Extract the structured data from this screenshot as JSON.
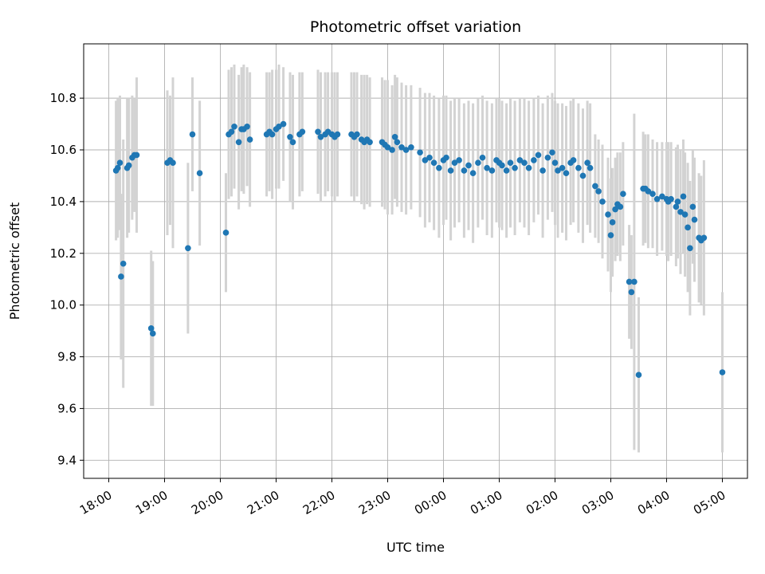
{
  "chart_data": {
    "type": "scatter",
    "title": "Photometric offset variation",
    "xlabel": "UTC time",
    "ylabel": "Photometric offset",
    "grid": true,
    "legend": "none",
    "marker_color": "#1f77b4",
    "errorbar_color": "#d3d3d3",
    "grid_color": "#b0b0b0",
    "background": "#ffffff",
    "x_tick_hours": [
      18,
      19,
      20,
      21,
      22,
      23,
      24,
      25,
      26,
      27,
      28,
      29
    ],
    "x_tick_labels": [
      "18:00",
      "19:00",
      "20:00",
      "21:00",
      "22:00",
      "23:00",
      "00:00",
      "01:00",
      "02:00",
      "03:00",
      "04:00",
      "05:00"
    ],
    "y_ticks": [
      9.4,
      9.6,
      9.8,
      10.0,
      10.2,
      10.4,
      10.6,
      10.8
    ],
    "x_range_hours": [
      17.55,
      29.45
    ],
    "y_range": [
      9.33,
      11.01
    ],
    "points_format": [
      "utc_hour_decimal",
      "offset",
      "error"
    ],
    "points": [
      [
        18.13,
        10.52,
        0.27
      ],
      [
        18.16,
        10.53,
        0.27
      ],
      [
        18.2,
        10.55,
        0.26
      ],
      [
        18.22,
        10.11,
        0.32
      ],
      [
        18.26,
        10.16,
        0.48
      ],
      [
        18.33,
        10.53,
        0.27
      ],
      [
        18.36,
        10.54,
        0.26
      ],
      [
        18.42,
        10.57,
        0.24
      ],
      [
        18.46,
        10.58,
        0.22
      ],
      [
        18.5,
        10.58,
        0.3
      ],
      [
        18.76,
        9.91,
        0.3
      ],
      [
        18.79,
        9.89,
        0.28
      ],
      [
        19.05,
        10.55,
        0.28
      ],
      [
        19.1,
        10.56,
        0.25
      ],
      [
        19.15,
        10.55,
        0.33
      ],
      [
        19.42,
        10.22,
        0.33
      ],
      [
        19.5,
        10.66,
        0.22
      ],
      [
        19.63,
        10.51,
        0.28
      ],
      [
        20.1,
        10.28,
        0.23
      ],
      [
        20.15,
        10.66,
        0.25
      ],
      [
        20.2,
        10.67,
        0.25
      ],
      [
        20.25,
        10.69,
        0.24
      ],
      [
        20.33,
        10.63,
        0.26
      ],
      [
        20.38,
        10.68,
        0.24
      ],
      [
        20.42,
        10.68,
        0.25
      ],
      [
        20.48,
        10.69,
        0.23
      ],
      [
        20.53,
        10.64,
        0.26
      ],
      [
        20.83,
        10.66,
        0.24
      ],
      [
        20.88,
        10.67,
        0.23
      ],
      [
        20.93,
        10.66,
        0.25
      ],
      [
        21.0,
        10.68,
        0.23
      ],
      [
        21.05,
        10.69,
        0.24
      ],
      [
        21.13,
        10.7,
        0.22
      ],
      [
        21.25,
        10.65,
        0.25
      ],
      [
        21.3,
        10.63,
        0.26
      ],
      [
        21.42,
        10.66,
        0.24
      ],
      [
        21.47,
        10.67,
        0.23
      ],
      [
        21.75,
        10.67,
        0.24
      ],
      [
        21.8,
        10.65,
        0.25
      ],
      [
        21.88,
        10.66,
        0.24
      ],
      [
        21.93,
        10.67,
        0.23
      ],
      [
        22.0,
        10.66,
        0.24
      ],
      [
        22.05,
        10.65,
        0.25
      ],
      [
        22.1,
        10.66,
        0.24
      ],
      [
        22.35,
        10.66,
        0.24
      ],
      [
        22.4,
        10.65,
        0.25
      ],
      [
        22.45,
        10.66,
        0.24
      ],
      [
        22.53,
        10.64,
        0.25
      ],
      [
        22.58,
        10.63,
        0.26
      ],
      [
        22.63,
        10.64,
        0.25
      ],
      [
        22.68,
        10.63,
        0.25
      ],
      [
        22.9,
        10.63,
        0.25
      ],
      [
        22.95,
        10.62,
        0.25
      ],
      [
        23.0,
        10.61,
        0.26
      ],
      [
        23.08,
        10.6,
        0.25
      ],
      [
        23.13,
        10.65,
        0.24
      ],
      [
        23.17,
        10.63,
        0.25
      ],
      [
        23.25,
        10.61,
        0.25
      ],
      [
        23.33,
        10.6,
        0.25
      ],
      [
        23.42,
        10.61,
        0.24
      ],
      [
        23.58,
        10.59,
        0.25
      ],
      [
        23.67,
        10.56,
        0.26
      ],
      [
        23.75,
        10.57,
        0.25
      ],
      [
        23.83,
        10.55,
        0.26
      ],
      [
        23.92,
        10.53,
        0.27
      ],
      [
        24.0,
        10.56,
        0.25
      ],
      [
        24.05,
        10.57,
        0.24
      ],
      [
        24.13,
        10.52,
        0.27
      ],
      [
        24.2,
        10.55,
        0.25
      ],
      [
        24.28,
        10.56,
        0.24
      ],
      [
        24.37,
        10.52,
        0.26
      ],
      [
        24.45,
        10.54,
        0.25
      ],
      [
        24.53,
        10.51,
        0.27
      ],
      [
        24.62,
        10.55,
        0.25
      ],
      [
        24.7,
        10.57,
        0.24
      ],
      [
        24.78,
        10.53,
        0.26
      ],
      [
        24.87,
        10.52,
        0.26
      ],
      [
        24.95,
        10.56,
        0.24
      ],
      [
        25.0,
        10.55,
        0.25
      ],
      [
        25.05,
        10.54,
        0.25
      ],
      [
        25.13,
        10.52,
        0.26
      ],
      [
        25.2,
        10.55,
        0.25
      ],
      [
        25.28,
        10.53,
        0.26
      ],
      [
        25.37,
        10.56,
        0.24
      ],
      [
        25.45,
        10.55,
        0.25
      ],
      [
        25.53,
        10.53,
        0.26
      ],
      [
        25.62,
        10.56,
        0.24
      ],
      [
        25.7,
        10.58,
        0.23
      ],
      [
        25.78,
        10.52,
        0.26
      ],
      [
        25.87,
        10.57,
        0.24
      ],
      [
        25.95,
        10.59,
        0.23
      ],
      [
        26.0,
        10.55,
        0.24
      ],
      [
        26.05,
        10.52,
        0.26
      ],
      [
        26.13,
        10.53,
        0.25
      ],
      [
        26.2,
        10.51,
        0.26
      ],
      [
        26.28,
        10.55,
        0.24
      ],
      [
        26.33,
        10.56,
        0.24
      ],
      [
        26.42,
        10.53,
        0.25
      ],
      [
        26.5,
        10.5,
        0.26
      ],
      [
        26.58,
        10.55,
        0.24
      ],
      [
        26.63,
        10.53,
        0.25
      ],
      [
        26.72,
        10.46,
        0.2
      ],
      [
        26.78,
        10.44,
        0.2
      ],
      [
        26.85,
        10.4,
        0.22
      ],
      [
        26.95,
        10.35,
        0.22
      ],
      [
        27.0,
        10.27,
        0.22
      ],
      [
        27.03,
        10.32,
        0.21
      ],
      [
        27.08,
        10.37,
        0.2
      ],
      [
        27.12,
        10.39,
        0.2
      ],
      [
        27.17,
        10.38,
        0.21
      ],
      [
        27.22,
        10.43,
        0.2
      ],
      [
        27.33,
        10.09,
        0.22
      ],
      [
        27.37,
        10.05,
        0.22
      ],
      [
        27.42,
        10.09,
        0.65
      ],
      [
        27.5,
        9.73,
        0.3
      ],
      [
        27.58,
        10.45,
        0.22
      ],
      [
        27.62,
        10.45,
        0.21
      ],
      [
        27.67,
        10.44,
        0.22
      ],
      [
        27.75,
        10.43,
        0.21
      ],
      [
        27.83,
        10.41,
        0.22
      ],
      [
        27.92,
        10.42,
        0.21
      ],
      [
        28.0,
        10.41,
        0.22
      ],
      [
        28.03,
        10.4,
        0.23
      ],
      [
        28.08,
        10.41,
        0.22
      ],
      [
        28.17,
        10.38,
        0.23
      ],
      [
        28.2,
        10.4,
        0.22
      ],
      [
        28.25,
        10.36,
        0.24
      ],
      [
        28.3,
        10.42,
        0.22
      ],
      [
        28.33,
        10.35,
        0.24
      ],
      [
        28.38,
        10.3,
        0.25
      ],
      [
        28.42,
        10.22,
        0.26
      ],
      [
        28.47,
        10.38,
        0.22
      ],
      [
        28.5,
        10.33,
        0.24
      ],
      [
        28.58,
        10.26,
        0.25
      ],
      [
        28.62,
        10.25,
        0.25
      ],
      [
        28.67,
        10.26,
        0.3
      ],
      [
        29.0,
        9.74,
        0.31
      ]
    ]
  }
}
